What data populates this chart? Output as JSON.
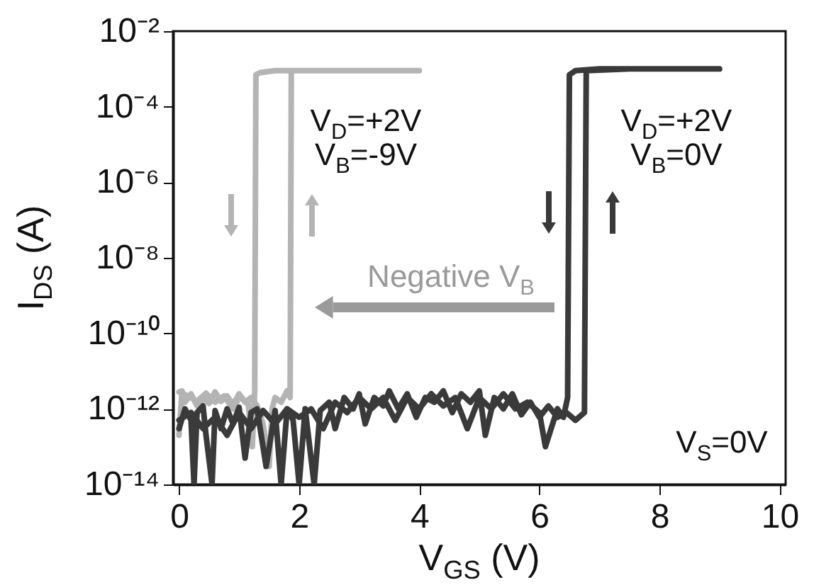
{
  "chart_data": {
    "type": "line",
    "xlabel": "V$_{GS}$ (V)",
    "ylabel": "I$_{DS}$ (A)",
    "log": "y",
    "xlim": [
      -0.1,
      10.1
    ],
    "xticks": [
      0,
      2,
      4,
      6,
      8,
      10
    ],
    "ylim": [
      1e-14,
      0.01
    ],
    "yticks": [
      {
        "value": 1e-14,
        "label": "10⁻¹⁴"
      },
      {
        "value": 1e-12,
        "label": "10⁻¹²"
      },
      {
        "value": 1e-10,
        "label": "10⁻¹⁰"
      },
      {
        "value": 1e-08,
        "label": "10⁻⁸"
      },
      {
        "value": 1e-06,
        "label": "10⁻⁶"
      },
      {
        "value": 0.0001,
        "label": "10⁻⁴"
      },
      {
        "value": 0.01,
        "label": "10⁻²"
      }
    ],
    "grid": false,
    "marker": "none",
    "line_style": "solid",
    "series": [
      {
        "color": "#b4b4b4",
        "x": [
          0,
          0.05,
          0.1,
          0.2,
          0.3,
          0.4,
          0.5,
          0.6,
          0.7,
          0.8,
          0.9,
          1.0,
          1.1,
          1.2,
          1.3,
          1.4,
          1.5,
          1.55,
          1.6,
          1.7,
          1.8,
          1.85,
          1.87,
          2.5,
          3.0,
          4.0,
          3.0,
          2.0,
          1.6,
          1.35,
          1.28,
          1.26,
          1.22,
          1.15,
          1.0,
          0.9,
          0.75,
          0.6,
          0.45,
          0.3,
          0.15,
          0
        ],
        "values": [
          2e-13,
          3e-12,
          1.5e-12,
          2.5e-12,
          1.2e-12,
          2e-12,
          1.4e-12,
          2.8e-12,
          1.6e-12,
          2.2e-12,
          1.3e-12,
          2.5e-12,
          1.5e-12,
          2e-12,
          1.2e-12,
          4e-13,
          3e-14,
          1e-12,
          2e-12,
          1.5e-12,
          3e-12,
          2e-12,
          0.0009,
          0.0009,
          0.0009,
          0.0009,
          0.0009,
          0.0009,
          0.0009,
          0.0008,
          0.0007,
          3e-12,
          1e-13,
          1.5e-12,
          2e-12,
          1e-12,
          2.2e-12,
          1.5e-12,
          2.6e-12,
          1.6e-12,
          2.2e-12,
          2.8e-12
        ]
      },
      {
        "color": "#3a3a3a",
        "x": [
          0,
          0.1,
          0.2,
          0.25,
          0.3,
          0.4,
          0.45,
          0.55,
          0.6,
          0.7,
          0.8,
          0.9,
          1.0,
          1.1,
          1.2,
          1.3,
          1.45,
          1.6,
          1.7,
          1.8,
          1.9,
          2.0,
          2.1,
          2.25,
          2.35,
          2.5,
          2.6,
          2.75,
          2.9,
          3.0,
          3.1,
          3.25,
          3.4,
          3.5,
          3.65,
          3.8,
          3.95,
          4.1,
          4.25,
          4.4,
          4.55,
          4.7,
          4.85,
          5.0,
          5.1,
          5.25,
          5.4,
          5.55,
          5.7,
          5.85,
          6.0,
          6.15,
          6.3,
          6.45,
          6.6,
          6.75,
          6.78,
          7.5,
          8.5,
          9.0,
          8.0,
          7.0,
          6.6,
          6.5,
          6.47,
          6.4,
          6.3,
          6.1,
          6.0,
          5.8,
          5.6,
          5.4,
          5.2,
          5.0,
          4.8,
          4.6,
          4.4,
          4.2,
          4.0,
          3.8,
          3.6,
          3.4,
          3.2,
          3.0,
          2.8,
          2.6,
          2.4,
          2.2,
          2.0,
          1.8,
          1.6,
          1.4,
          1.2,
          1.0,
          0.8,
          0.6,
          0.4,
          0.2,
          0
        ],
        "values": [
          3e-13,
          1e-12,
          5e-13,
          1e-14,
          8e-13,
          1.2e-12,
          2e-13,
          1e-14,
          9e-13,
          3e-13,
          1e-12,
          4e-13,
          1.1e-12,
          5e-14,
          8e-13,
          1e-12,
          3e-14,
          9e-13,
          1e-14,
          1e-12,
          5e-13,
          1e-14,
          1e-12,
          1e-14,
          9e-13,
          1.5e-12,
          3e-13,
          2e-12,
          1e-12,
          2.5e-12,
          4e-13,
          2e-12,
          1.2e-12,
          3e-12,
          1e-12,
          2.5e-12,
          6e-13,
          2e-12,
          1.5e-12,
          3e-12,
          8e-13,
          2.5e-12,
          1.5e-12,
          3e-12,
          2e-13,
          2e-12,
          1e-12,
          2.5e-12,
          7e-13,
          1.5e-12,
          6e-13,
          1.2e-12,
          6e-13,
          8e-13,
          5e-13,
          8e-13,
          0.0009,
          0.001,
          0.001,
          0.001,
          0.001,
          0.001,
          0.0009,
          0.0007,
          2e-12,
          6e-13,
          1e-12,
          1e-13,
          8e-13,
          1.5e-12,
          1e-12,
          2.5e-12,
          1e-12,
          2e-12,
          3e-13,
          2e-12,
          1.2e-12,
          2.5e-12,
          1e-12,
          2e-12,
          5e-13,
          2e-12,
          1e-12,
          2e-12,
          8e-13,
          1.5e-12,
          3e-13,
          1e-12,
          6e-13,
          1e-12,
          4e-13,
          9e-13,
          3e-13,
          8e-13,
          2e-13,
          6e-13,
          3e-13,
          8e-13,
          5e-13
        ]
      }
    ],
    "annotations": [
      "V$_{D}$=+2V",
      "V$_{B}$=-9V",
      "V$_{D}$=+2V",
      "V$_{B}$=0V",
      "Negative V$_{B}$",
      "V$_{S}$=0V"
    ]
  }
}
